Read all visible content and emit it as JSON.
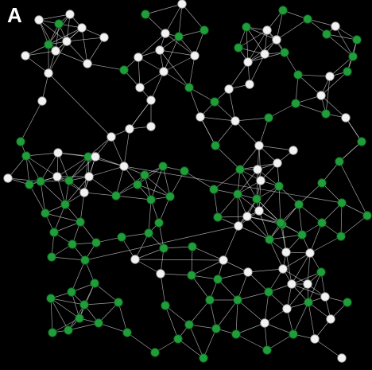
{
  "panel_label": "A",
  "colors": {
    "background": "#000000",
    "label": "#ffffff",
    "edge": "#d8d8d8",
    "node_white": "#f2f2f2",
    "node_white_stroke": "#9a9a9a",
    "node_green": "#1f9e3a",
    "node_green_stroke": "#0c5a1e"
  },
  "graph": {
    "node_types": [
      "white",
      "green"
    ]
  }
}
